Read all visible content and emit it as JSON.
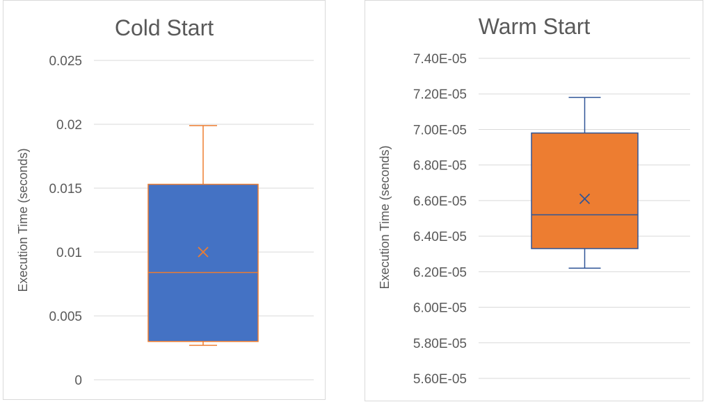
{
  "chart_data": [
    {
      "type": "box",
      "title": "Cold Start",
      "xlabel": "",
      "ylabel": "Execution Time (seconds)",
      "ylim": [
        0,
        0.025
      ],
      "yticks": [
        0,
        0.005,
        0.01,
        0.015,
        0.02,
        0.025
      ],
      "ytick_labels": [
        "0",
        "0.005",
        "0.01",
        "0.015",
        "0.02",
        "0.025"
      ],
      "grid": true,
      "box": {
        "min": 0.0027,
        "q1": 0.003,
        "median": 0.0084,
        "mean": 0.01,
        "q3": 0.0153,
        "max": 0.0199
      },
      "colors": {
        "box_fill": "#4472C4",
        "box_line": "#ED7D31",
        "mean_marker": "#ED7D31"
      }
    },
    {
      "type": "box",
      "title": "Warm Start",
      "xlabel": "",
      "ylabel": "Execution Time (seconds)",
      "ylim": [
        5.6e-05,
        7.4e-05
      ],
      "yticks": [
        5.6e-05,
        5.8e-05,
        6e-05,
        6.2e-05,
        6.4e-05,
        6.6e-05,
        6.8e-05,
        7e-05,
        7.2e-05,
        7.4e-05
      ],
      "ytick_labels": [
        "5.60E-05",
        "5.80E-05",
        "6.00E-05",
        "6.20E-05",
        "6.40E-05",
        "6.60E-05",
        "6.80E-05",
        "7.00E-05",
        "7.20E-05",
        "7.40E-05"
      ],
      "grid": true,
      "box": {
        "min": 6.22e-05,
        "q1": 6.33e-05,
        "median": 6.52e-05,
        "mean": 6.61e-05,
        "q3": 6.98e-05,
        "max": 7.18e-05
      },
      "colors": {
        "box_fill": "#ED7D31",
        "box_line": "#2F5597",
        "mean_marker": "#2F5597"
      }
    }
  ]
}
